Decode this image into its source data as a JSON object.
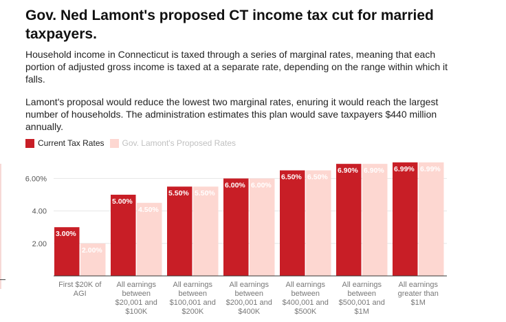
{
  "title": "Gov. Ned Lamont's proposed CT income tax cut for married taxpayers.",
  "description": [
    "Household income in Connecticut is taxed through a series of marginal rates, meaning that each portion of adjusted gross income is taxed at a separate rate, depending on the range within which it falls.",
    "Lamont's proposal would reduce the lowest two marginal rates, enuring it would reach the largest number of households. The administration estimates this plan would save taxpayers $440 million annually."
  ],
  "colors": {
    "current": "#c81e26",
    "proposed": "#fdd7d1"
  },
  "chart_data": {
    "type": "bar",
    "title": "",
    "xlabel": "",
    "ylabel": "",
    "ylim": [
      0,
      7
    ],
    "yticks": [
      {
        "value": 2,
        "label": "2.00"
      },
      {
        "value": 4,
        "label": "4.00"
      },
      {
        "value": 6,
        "label": "6.00%"
      }
    ],
    "categories": [
      [
        "First $20K of",
        "AGI"
      ],
      [
        "All earnings",
        "between",
        "$20,001 and",
        "$100K"
      ],
      [
        "All earnings",
        "between",
        "$100,001 and",
        "$200K"
      ],
      [
        "All earnings",
        "between",
        "$200,001 and",
        "$400K"
      ],
      [
        "All earnings",
        "between",
        "$400,001 and",
        "$500K"
      ],
      [
        "All earnings",
        "between",
        "$500,001 and",
        "$1M"
      ],
      [
        "All earnings",
        "greater than",
        "$1M"
      ]
    ],
    "legend": [
      "Current Tax Rates",
      "Gov. Lamont's Proposed Rates"
    ],
    "legend_position": "top-left",
    "series": [
      {
        "name": "Current Tax Rates",
        "values": [
          3.0,
          5.0,
          5.5,
          6.0,
          6.5,
          6.9,
          6.99
        ],
        "labels": [
          "3.00%",
          "5.00%",
          "5.50%",
          "6.00%",
          "6.50%",
          "6.90%",
          "6.99%"
        ]
      },
      {
        "name": "Gov. Lamont's Proposed Rates",
        "values": [
          2.0,
          4.5,
          5.5,
          6.0,
          6.5,
          6.9,
          6.99
        ],
        "labels": [
          "2.00%",
          "4.50%",
          "5.50%",
          "6.00%",
          "6.50%",
          "6.90%",
          "6.99%"
        ]
      }
    ]
  }
}
